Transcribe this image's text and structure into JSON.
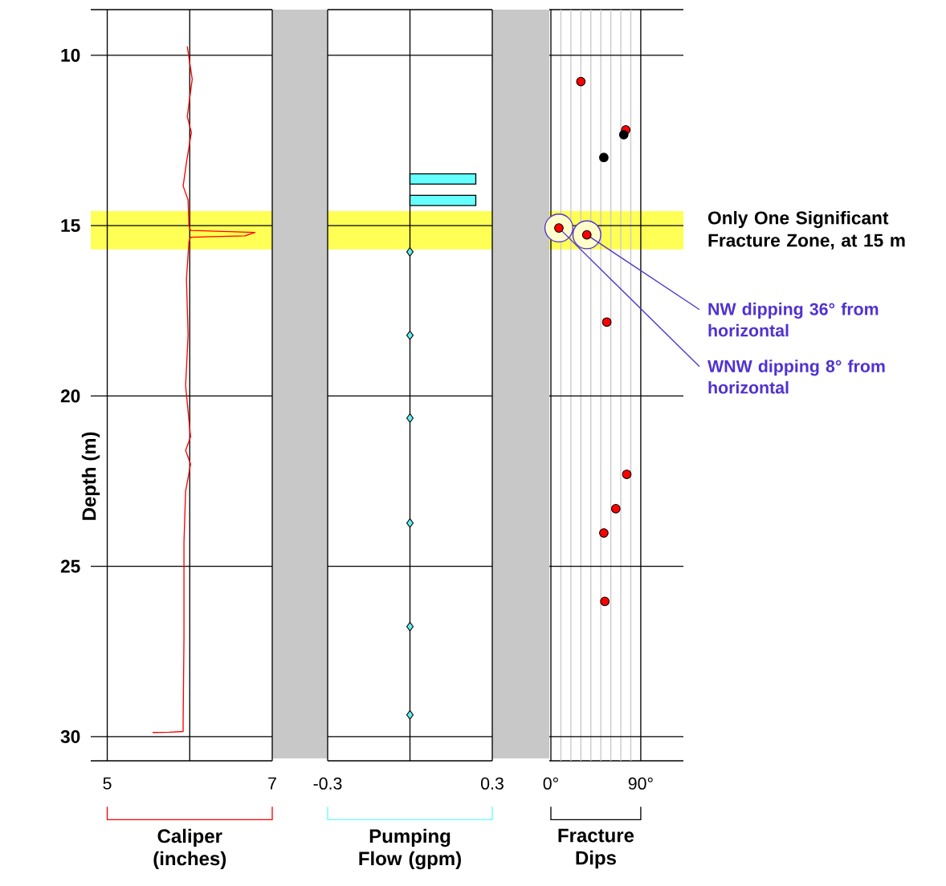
{
  "chart_data": [
    {
      "type": "line",
      "orientation": "horizontal",
      "ylabel": "Depth (m)",
      "xlabel": "Caliper (inches)",
      "series": [
        {
          "color": "#ff0000",
          "x": [
            9.74,
            10.7,
            11.8,
            12.26,
            13.15,
            13.84,
            14.25,
            15.0,
            15.14,
            15.2,
            15.3,
            15.34,
            15.48,
            16.57,
            18.2,
            19.7,
            21.2,
            21.6,
            22.0,
            22.8,
            24.3,
            27.1,
            29.55,
            29.85,
            29.87,
            29.88
          ],
          "values": [
            5.97,
            6.03,
            5.97,
            6.02,
            5.96,
            5.92,
            5.98,
            5.99,
            6.01,
            6.79,
            6.67,
            6.01,
            5.99,
            5.96,
            5.98,
            5.95,
            6.01,
            5.95,
            6.01,
            5.95,
            5.93,
            5.93,
            5.92,
            5.92,
            5.75,
            5.55
          ]
        }
      ],
      "xlim": [
        4.8,
        7
      ],
      "xticks": [
        5,
        {
          "value": 6,
          "label": null
        },
        7
      ],
      "ylim": [
        30.71,
        8.66
      ],
      "yticks": [
        10,
        15,
        20,
        25,
        30
      ],
      "grid": true,
      "bands": [
        {
          "axis": "y",
          "from": 14.57,
          "to": 15.7,
          "color": "#ffff55"
        }
      ]
    },
    {
      "type": "bar",
      "orientation": "horizontal",
      "xlabel": "Pumping Flow (gpm)",
      "marker": "diamond",
      "series": [
        {
          "type": "bar",
          "color": "#66ffff",
          "x": [
            13.63,
            14.26
          ],
          "values": [
            0.24,
            0.24
          ]
        },
        {
          "type": "scatter",
          "color": "#66eeee",
          "x": [
            15.77,
            18.22,
            20.65,
            23.73,
            26.77,
            29.36
          ],
          "values": [
            0,
            0,
            0,
            0,
            0,
            0
          ]
        }
      ],
      "xlim": [
        -0.3,
        0.3
      ],
      "xticks": [
        -0.3,
        {
          "value": 0,
          "label": null
        },
        0.3
      ],
      "ylim": [
        30.71,
        8.66
      ],
      "yticks": [
        10,
        15,
        20,
        25,
        30
      ],
      "grid": true,
      "tick_labels": "x",
      "bands": [
        {
          "axis": "y",
          "from": 14.57,
          "to": 15.7,
          "color": "#ffff55"
        }
      ]
    },
    {
      "type": "scatter",
      "orientation": "horizontal",
      "xlabel": "Fracture Dips",
      "marker": "circle",
      "series": [
        {
          "color": "#ff0000",
          "x": [
            10.77,
            12.19,
            15.07,
            15.27,
            17.83,
            22.3,
            23.31,
            24.02,
            26.03
          ],
          "values": [
            30,
            75,
            8,
            36,
            56,
            76,
            65,
            53,
            54
          ]
        },
        {
          "color": "#000000",
          "x": [
            12.33,
            13.0
          ],
          "values": [
            73,
            53
          ]
        }
      ],
      "xlim": [
        -1.6,
        132.7
      ],
      "xticks": [
        {
          "value": 0,
          "label": "0°"
        },
        {
          "value": 10,
          "label": null
        },
        {
          "value": 20,
          "label": null
        },
        {
          "value": 30,
          "label": null
        },
        {
          "value": 40,
          "label": null
        },
        {
          "value": 50,
          "label": null
        },
        {
          "value": 60,
          "label": null
        },
        {
          "value": 70,
          "label": null
        },
        {
          "value": 80,
          "label": null
        },
        {
          "value": 90,
          "label": "90°"
        }
      ],
      "ylim": [
        30.71,
        8.66
      ],
      "yticks": [
        10,
        15,
        20,
        25,
        30
      ],
      "grid": true,
      "tick_labels": "x",
      "bands": [
        {
          "axis": "y",
          "from": 14.57,
          "to": 15.7,
          "color": "#ffff55",
          "label": "Only One Significant Fracture Zone, at 15 m"
        }
      ],
      "annotations": [
        {
          "text": "NW dipping 36° from horizontal",
          "x": 36,
          "y": 15.27
        },
        {
          "text": "WNW dipping 8° from horizontal",
          "x": 8,
          "y": 15.07
        }
      ]
    }
  ]
}
